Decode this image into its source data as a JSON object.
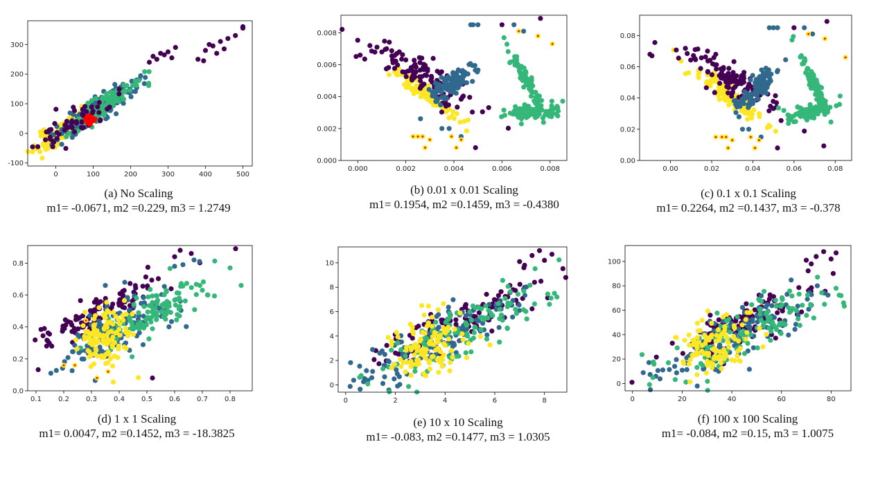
{
  "palette": {
    "purple": "#440154",
    "blue": "#31688e",
    "green": "#35b779",
    "yellow": "#fde725",
    "red": "#ff0000",
    "orange": "#ff7f0e"
  },
  "chart_data": [
    {
      "id": "a",
      "type": "scatter",
      "caption": "(a) No Scaling",
      "metrics": "m1= -0.0671, m2 =0.229, m3 = 1.2749",
      "xlim": [
        -75,
        525
      ],
      "ylim": [
        -110,
        380
      ],
      "xticks": [
        0,
        100,
        200,
        300,
        400,
        500
      ],
      "yticks": [
        -100,
        0,
        100,
        200,
        300
      ],
      "xtick_labels": [
        "0",
        "100",
        "200",
        "300",
        "400",
        "500"
      ],
      "ytick_labels": [
        "-100",
        "0",
        "100",
        "200",
        "300"
      ],
      "clusters": [
        {
          "color": "yellow",
          "n": 140,
          "seed": 11,
          "cx": 20,
          "cy": 10,
          "slope": 0.75,
          "sx": 40,
          "sy": 18
        },
        {
          "color": "blue",
          "n": 150,
          "seed": 12,
          "cx": 110,
          "cy": 80,
          "slope": 0.8,
          "sx": 55,
          "sy": 20
        },
        {
          "color": "green",
          "n": 110,
          "seed": 13,
          "cx": 120,
          "cy": 90,
          "slope": 0.8,
          "sx": 50,
          "sy": 18
        },
        {
          "color": "purple",
          "n": 60,
          "seed": 14,
          "cx": 60,
          "cy": 40,
          "slope": 0.7,
          "sx": 50,
          "sy": 25
        }
      ],
      "points": [
        {
          "color": "purple",
          "x": [
            260,
            270,
            280,
            290,
            300,
            310,
            400,
            410,
            420,
            440,
            460,
            480,
            500,
            500,
            430,
            450,
            380,
            395,
            250,
            320
          ],
          "y": [
            260,
            250,
            270,
            265,
            275,
            255,
            280,
            300,
            295,
            310,
            320,
            330,
            360,
            355,
            270,
            285,
            250,
            245,
            240,
            290
          ]
        },
        {
          "color": "red",
          "x": [
            80,
            85,
            90,
            95,
            100,
            92,
            88,
            98,
            105,
            82
          ],
          "y": [
            45,
            35,
            40,
            55,
            50,
            30,
            60,
            42,
            48,
            52
          ]
        }
      ]
    },
    {
      "id": "b",
      "type": "scatter",
      "caption": "(b) 0.01 x 0.01 Scaling",
      "metrics": "m1= 0.1954, m2 =0.1459, m3 = -0.4380",
      "xlim": [
        -0.0007,
        0.0087
      ],
      "ylim": [
        0,
        0.0091
      ],
      "xticks": [
        0,
        0.002,
        0.004,
        0.006,
        0.008
      ],
      "yticks": [
        0,
        0.002,
        0.004,
        0.006,
        0.008
      ],
      "xtick_labels": [
        "0.000",
        "0.002",
        "0.004",
        "0.006",
        "0.008"
      ],
      "ytick_labels": [
        "0.000",
        "0.002",
        "0.004",
        "0.006",
        "0.008"
      ],
      "clusters": [
        {
          "color": "yellow",
          "n": 120,
          "seed": 21,
          "cx": 0.0028,
          "cy": 0.0042,
          "slope": -1.0,
          "sx": 0.0007,
          "sy": 0.00025
        },
        {
          "color": "purple",
          "n": 110,
          "seed": 22,
          "cx": 0.0025,
          "cy": 0.0055,
          "slope": -0.8,
          "sx": 0.0012,
          "sy": 0.0005
        },
        {
          "color": "blue",
          "n": 110,
          "seed": 23,
          "cx": 0.0039,
          "cy": 0.0048,
          "slope": 1.0,
          "sx": 0.0005,
          "sy": 0.0004
        },
        {
          "color": "green",
          "n": 90,
          "seed": 24,
          "cx": 0.0072,
          "cy": 0.003,
          "slope": 0.1,
          "sx": 0.0006,
          "sy": 0.00025
        },
        {
          "color": "green",
          "n": 80,
          "seed": 25,
          "cx": 0.007,
          "cy": 0.005,
          "slope": -2.5,
          "sx": 0.00035,
          "sy": 0.0003
        }
      ],
      "points": [
        {
          "color": "purple",
          "x": [
            0.0001,
            0.0008,
            0.001,
            0.0012,
            0.002,
            0.0049,
            0.006,
            0.0076
          ],
          "y": [
            0.0066,
            0.0071,
            0.0068,
            0.007,
            0.0063,
            0.0008,
            0.0085,
            0.0089
          ]
        },
        {
          "color": "blue",
          "x": [
            0.0035,
            0.0038,
            0.0043,
            0.0047,
            0.0048,
            0.005,
            0.0065,
            0.0069
          ],
          "y": [
            0.002,
            0.002,
            0.0015,
            0.0085,
            0.0085,
            0.0085,
            0.0085,
            0.0081
          ]
        },
        {
          "color": "orange",
          "x": [
            0.0023,
            0.0025,
            0.0027,
            0.0028,
            0.003,
            0.0039,
            0.0041,
            0.0043,
            0.0067,
            0.0075,
            0.0081
          ],
          "y": [
            0.0015,
            0.0015,
            0.0015,
            0.0008,
            0.0013,
            0.0015,
            0.0008,
            0.0013,
            0.0081,
            0.0078,
            0.0073
          ]
        }
      ]
    },
    {
      "id": "c",
      "type": "scatter",
      "caption": "(c) 0.1 x 0.1 Scaling",
      "metrics": "m1= 0.2264, m2 =0.1437, m3 = -0.378",
      "xlim": [
        -0.015,
        0.088
      ],
      "ylim": [
        0,
        0.093
      ],
      "xticks": [
        0,
        0.02,
        0.04,
        0.06,
        0.08
      ],
      "yticks": [
        0,
        0.02,
        0.04,
        0.06,
        0.08
      ],
      "xtick_labels": [
        "0.00",
        "0.02",
        "0.04",
        "0.06",
        "0.08"
      ],
      "ytick_labels": [
        "0.00",
        "0.02",
        "0.04",
        "0.06",
        "0.08"
      ],
      "clusters": [
        {
          "color": "yellow",
          "n": 120,
          "seed": 31,
          "cx": 0.028,
          "cy": 0.042,
          "slope": -1.0,
          "sx": 0.008,
          "sy": 0.003
        },
        {
          "color": "purple",
          "n": 110,
          "seed": 32,
          "cx": 0.03,
          "cy": 0.052,
          "slope": -0.7,
          "sx": 0.012,
          "sy": 0.005
        },
        {
          "color": "blue",
          "n": 110,
          "seed": 33,
          "cx": 0.042,
          "cy": 0.046,
          "slope": 1.0,
          "sx": 0.005,
          "sy": 0.004
        },
        {
          "color": "green",
          "n": 90,
          "seed": 34,
          "cx": 0.067,
          "cy": 0.031,
          "slope": 0.2,
          "sx": 0.006,
          "sy": 0.003
        },
        {
          "color": "green",
          "n": 80,
          "seed": 35,
          "cx": 0.07,
          "cy": 0.048,
          "slope": -2.5,
          "sx": 0.0035,
          "sy": 0.003
        }
      ],
      "points": [
        {
          "color": "purple",
          "x": [
            -0.01,
            -0.009,
            0.012,
            0.018,
            0.022,
            0.052,
            0.06,
            0.076
          ],
          "y": [
            0.068,
            0.067,
            0.071,
            0.07,
            0.068,
            0.008,
            0.085,
            0.089
          ]
        },
        {
          "color": "blue",
          "x": [
            0.035,
            0.038,
            0.044,
            0.048,
            0.05,
            0.052,
            0.065,
            0.069
          ],
          "y": [
            0.02,
            0.02,
            0.015,
            0.085,
            0.085,
            0.085,
            0.085,
            0.081
          ]
        },
        {
          "color": "orange",
          "x": [
            0.022,
            0.025,
            0.027,
            0.028,
            0.03,
            0.039,
            0.041,
            0.043,
            0.067,
            0.075,
            0.085
          ],
          "y": [
            0.015,
            0.015,
            0.015,
            0.008,
            0.013,
            0.015,
            0.008,
            0.013,
            0.081,
            0.078,
            0.066
          ]
        }
      ]
    },
    {
      "id": "d",
      "type": "scatter",
      "caption": "(d) 1 x 1 Scaling",
      "metrics": "m1= 0.0047, m2 =0.1452, m3 = -18.3825",
      "xlim": [
        0.07,
        0.88
      ],
      "ylim": [
        0,
        0.91
      ],
      "xticks": [
        0.1,
        0.2,
        0.3,
        0.4,
        0.5,
        0.6,
        0.7,
        0.8
      ],
      "yticks": [
        0,
        0.2,
        0.4,
        0.6,
        0.8
      ],
      "xtick_labels": [
        "0.1",
        "0.2",
        "0.3",
        "0.4",
        "0.5",
        "0.6",
        "0.7",
        "0.8"
      ],
      "ytick_labels": [
        "0.0",
        "0.2",
        "0.4",
        "0.6",
        "0.8"
      ],
      "clusters": [
        {
          "color": "purple",
          "n": 110,
          "seed": 41,
          "cx": 0.33,
          "cy": 0.5,
          "slope": 0.9,
          "sx": 0.11,
          "sy": 0.05
        },
        {
          "color": "blue",
          "n": 130,
          "seed": 42,
          "cx": 0.38,
          "cy": 0.38,
          "slope": 0.8,
          "sx": 0.1,
          "sy": 0.08
        },
        {
          "color": "green",
          "n": 110,
          "seed": 43,
          "cx": 0.52,
          "cy": 0.48,
          "slope": 0.9,
          "sx": 0.1,
          "sy": 0.07
        },
        {
          "color": "yellow",
          "n": 120,
          "seed": 44,
          "cx": 0.34,
          "cy": 0.33,
          "slope": 0.3,
          "sx": 0.05,
          "sy": 0.09
        }
      ],
      "points": [
        {
          "color": "purple",
          "x": [
            0.13,
            0.52,
            0.6,
            0.62,
            0.66,
            0.82
          ],
          "y": [
            0.39,
            0.08,
            0.84,
            0.88,
            0.86,
            0.89
          ]
        },
        {
          "color": "blue",
          "x": [
            0.35,
            0.42,
            0.6,
            0.63,
            0.67,
            0.69
          ],
          "y": [
            0.66,
            0.68,
            0.78,
            0.79,
            0.82,
            0.81
          ]
        },
        {
          "color": "green",
          "x": [
            0.7,
            0.72,
            0.8,
            0.84
          ],
          "y": [
            0.63,
            0.6,
            0.77,
            0.66
          ]
        },
        {
          "color": "orange",
          "x": [
            0.2,
            0.24,
            0.28,
            0.32,
            0.36
          ],
          "y": [
            0.16,
            0.16,
            0.44,
            0.08,
            0.12
          ]
        }
      ]
    },
    {
      "id": "e",
      "type": "scatter",
      "caption": "(e) 10 x 10 Scaling",
      "metrics": "m1= -0.083, m2 =0.1477, m3 = 1.0305",
      "xlim": [
        -0.3,
        8.9
      ],
      "ylim": [
        -0.6,
        11.3
      ],
      "xticks": [
        0,
        2,
        4,
        6,
        8
      ],
      "yticks": [
        0,
        2,
        4,
        6,
        8,
        10
      ],
      "xtick_labels": [
        "0",
        "2",
        "4",
        "6",
        "8"
      ],
      "ytick_labels": [
        "0",
        "2",
        "4",
        "6",
        "8",
        "10"
      ],
      "clusters": [
        {
          "color": "purple",
          "n": 130,
          "seed": 51,
          "cx": 4.2,
          "cy": 4.8,
          "slope": 0.9,
          "sx": 1.6,
          "sy": 0.8
        },
        {
          "color": "blue",
          "n": 140,
          "seed": 52,
          "cx": 4.0,
          "cy": 4.0,
          "slope": 1.0,
          "sx": 1.8,
          "sy": 1.1
        },
        {
          "color": "green",
          "n": 120,
          "seed": 53,
          "cx": 4.5,
          "cy": 4.2,
          "slope": 1.0,
          "sx": 1.8,
          "sy": 1.1
        },
        {
          "color": "yellow",
          "n": 110,
          "seed": 54,
          "cx": 3.3,
          "cy": 3.0,
          "slope": 0.4,
          "sx": 0.8,
          "sy": 1.3
        }
      ],
      "points": [
        {
          "color": "purple",
          "x": [
            7.5,
            7.8,
            8.0,
            8.3,
            7.2,
            7.0
          ],
          "y": [
            10.6,
            11.0,
            10.2,
            10.7,
            9.8,
            10.1
          ]
        },
        {
          "color": "green",
          "x": [
            8.4,
            8.5,
            8.2
          ],
          "y": [
            7.5,
            7.2,
            6.6
          ]
        }
      ]
    },
    {
      "id": "f",
      "type": "scatter",
      "caption": "(f) 100 x 100 Scaling",
      "metrics": "m1= -0.084, m2 =0.15, m3 = 1.0075",
      "xlim": [
        -3,
        88
      ],
      "ylim": [
        -6,
        113
      ],
      "xticks": [
        0,
        20,
        40,
        60,
        80
      ],
      "yticks": [
        0,
        20,
        40,
        60,
        80,
        100
      ],
      "xtick_labels": [
        "0",
        "20",
        "40",
        "60",
        "80"
      ],
      "ytick_labels": [
        "0",
        "20",
        "40",
        "60",
        "80",
        "100"
      ],
      "clusters": [
        {
          "color": "purple",
          "n": 130,
          "seed": 61,
          "cx": 42,
          "cy": 48,
          "slope": 0.9,
          "sx": 16,
          "sy": 8
        },
        {
          "color": "blue",
          "n": 140,
          "seed": 62,
          "cx": 42,
          "cy": 40,
          "slope": 1.0,
          "sx": 18,
          "sy": 11
        },
        {
          "color": "green",
          "n": 120,
          "seed": 63,
          "cx": 48,
          "cy": 44,
          "slope": 1.0,
          "sx": 18,
          "sy": 11
        },
        {
          "color": "yellow",
          "n": 110,
          "seed": 64,
          "cx": 33,
          "cy": 30,
          "slope": 0.4,
          "sx": 8,
          "sy": 13
        }
      ],
      "points": [
        {
          "color": "purple",
          "x": [
            74,
            77,
            80,
            82,
            72,
            70
          ],
          "y": [
            104,
            108,
            102,
            107,
            98,
            101
          ]
        },
        {
          "color": "green",
          "x": [
            84,
            85,
            82
          ],
          "y": [
            72,
            66,
            78
          ]
        }
      ]
    }
  ]
}
